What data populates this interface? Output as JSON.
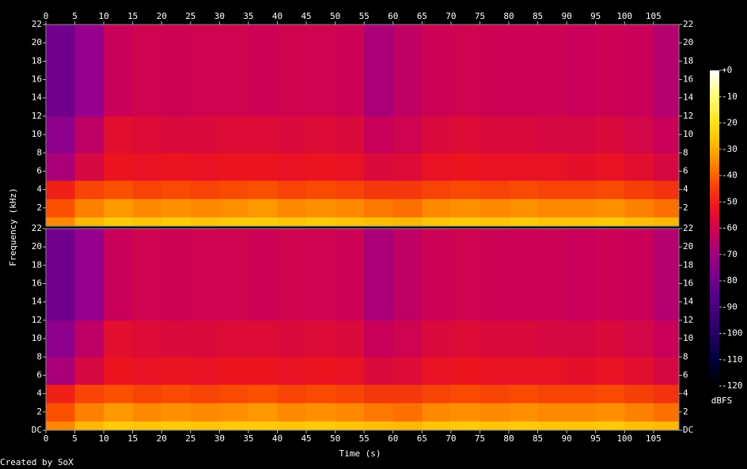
{
  "chart_data": {
    "type": "heatmap",
    "x_label": "Time (s)",
    "y_label": "Frequency (kHz)",
    "colorbar_label": "dBFS",
    "footer": "Created by SoX",
    "xlim": [
      0,
      109.4
    ],
    "xticks": [
      0,
      5,
      10,
      15,
      20,
      25,
      30,
      35,
      40,
      45,
      50,
      55,
      60,
      65,
      70,
      75,
      80,
      85,
      90,
      95,
      100,
      105
    ],
    "ylim": [
      0,
      22
    ],
    "clim": [
      -120,
      0
    ],
    "cticks": [
      {
        "value": 0,
        "label": "+0"
      },
      -10,
      -20,
      -30,
      -40,
      -50,
      -60,
      -70,
      -80,
      -90,
      -100,
      -110,
      -120
    ],
    "time_bins": [
      0,
      5,
      10,
      15,
      20,
      25,
      30,
      35,
      40,
      45,
      50,
      55,
      60,
      65,
      70,
      75,
      80,
      85,
      90,
      95,
      100,
      105,
      109.4
    ],
    "freq_bins": [
      0,
      1,
      3,
      5,
      8,
      12,
      22
    ],
    "channels": [
      {
        "yticks": [
          2,
          4,
          6,
          8,
          10,
          12,
          14,
          16,
          18,
          20,
          22
        ],
        "values": [
          [
            -35,
            -28,
            -25,
            -26,
            -25,
            -26,
            -25,
            -25,
            -26,
            -25,
            -26,
            -27,
            -28,
            -26,
            -25,
            -26,
            -25,
            -26,
            -26,
            -25,
            -27,
            -28
          ],
          [
            -42,
            -36,
            -33,
            -35,
            -34,
            -35,
            -34,
            -33,
            -35,
            -34,
            -35,
            -37,
            -38,
            -35,
            -34,
            -35,
            -34,
            -35,
            -35,
            -34,
            -36,
            -38
          ],
          [
            -50,
            -44,
            -42,
            -44,
            -43,
            -44,
            -43,
            -42,
            -44,
            -43,
            -44,
            -46,
            -46,
            -44,
            -43,
            -44,
            -43,
            -44,
            -44,
            -43,
            -45,
            -47
          ],
          [
            -68,
            -58,
            -52,
            -53,
            -52,
            -53,
            -52,
            -52,
            -53,
            -52,
            -53,
            -57,
            -56,
            -53,
            -52,
            -53,
            -53,
            -53,
            -54,
            -53,
            -55,
            -58
          ],
          [
            -74,
            -64,
            -55,
            -56,
            -57,
            -57,
            -56,
            -56,
            -57,
            -56,
            -57,
            -62,
            -60,
            -57,
            -56,
            -57,
            -57,
            -58,
            -58,
            -57,
            -59,
            -62
          ],
          [
            -80,
            -72,
            -62,
            -60,
            -61,
            -60,
            -60,
            -61,
            -60,
            -60,
            -61,
            -68,
            -64,
            -61,
            -60,
            -61,
            -61,
            -61,
            -62,
            -61,
            -62,
            -66
          ]
        ]
      },
      {
        "yticks": [
          {
            "value": 0,
            "label": "DC"
          },
          2,
          4,
          6,
          8,
          10,
          12,
          14,
          16,
          18,
          20,
          22
        ],
        "values": [
          [
            -35,
            -28,
            -25,
            -26,
            -25,
            -26,
            -25,
            -25,
            -26,
            -25,
            -26,
            -27,
            -28,
            -26,
            -25,
            -26,
            -25,
            -26,
            -26,
            -25,
            -27,
            -28
          ],
          [
            -42,
            -36,
            -33,
            -35,
            -34,
            -35,
            -34,
            -33,
            -35,
            -34,
            -35,
            -37,
            -38,
            -35,
            -34,
            -35,
            -34,
            -35,
            -35,
            -34,
            -36,
            -38
          ],
          [
            -50,
            -44,
            -42,
            -44,
            -43,
            -44,
            -43,
            -42,
            -44,
            -43,
            -44,
            -46,
            -46,
            -44,
            -43,
            -44,
            -43,
            -44,
            -44,
            -43,
            -45,
            -47
          ],
          [
            -68,
            -58,
            -52,
            -53,
            -52,
            -53,
            -52,
            -52,
            -53,
            -52,
            -53,
            -57,
            -56,
            -53,
            -52,
            -53,
            -53,
            -53,
            -54,
            -53,
            -55,
            -58
          ],
          [
            -74,
            -64,
            -55,
            -56,
            -57,
            -57,
            -56,
            -56,
            -57,
            -56,
            -57,
            -62,
            -60,
            -57,
            -56,
            -57,
            -57,
            -58,
            -58,
            -57,
            -59,
            -62
          ],
          [
            -80,
            -72,
            -62,
            -60,
            -61,
            -60,
            -60,
            -61,
            -60,
            -60,
            -61,
            -68,
            -64,
            -61,
            -60,
            -61,
            -61,
            -61,
            -62,
            -61,
            -62,
            -66
          ]
        ]
      }
    ]
  }
}
